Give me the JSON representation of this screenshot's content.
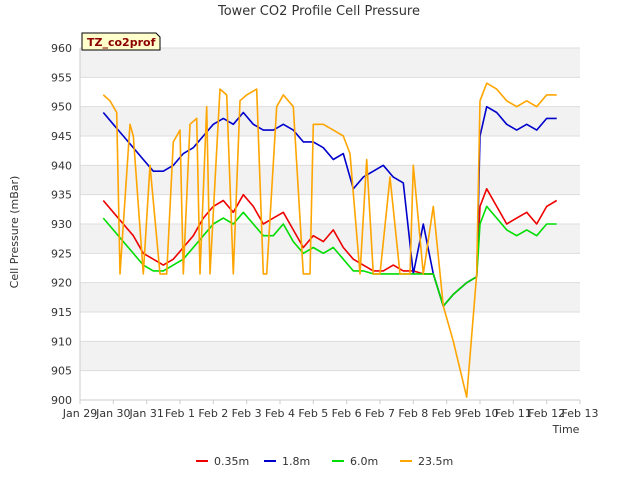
{
  "chart_data": {
    "type": "line",
    "title": "Tower CO2 Profile Cell Pressure",
    "badge": "TZ_co2prof",
    "xlabel": "Time",
    "ylabel": "Cell Pressure (mBar)",
    "ylim": [
      900,
      960
    ],
    "yticks": [
      900,
      905,
      910,
      915,
      920,
      925,
      930,
      935,
      940,
      945,
      950,
      955,
      960
    ],
    "xlim": [
      0,
      15
    ],
    "xticks": [
      {
        "v": 0,
        "label": "Jan 29"
      },
      {
        "v": 1,
        "label": "Jan 30"
      },
      {
        "v": 2,
        "label": "Jan 31"
      },
      {
        "v": 3,
        "label": "Feb 1"
      },
      {
        "v": 4,
        "label": "Feb 2"
      },
      {
        "v": 5,
        "label": "Feb 3"
      },
      {
        "v": 6,
        "label": "Feb 4"
      },
      {
        "v": 7,
        "label": "Feb 5"
      },
      {
        "v": 8,
        "label": "Feb 6"
      },
      {
        "v": 9,
        "label": "Feb 7"
      },
      {
        "v": 10,
        "label": "Feb 8"
      },
      {
        "v": 11,
        "label": "Feb 9"
      },
      {
        "v": 12,
        "label": "Feb 10"
      },
      {
        "v": 13,
        "label": "Feb 11"
      },
      {
        "v": 14,
        "label": "Feb 12"
      },
      {
        "v": 15,
        "label": "Feb 13"
      }
    ],
    "grid": true,
    "legend": "bottom",
    "series": [
      {
        "name": "0.35m",
        "color": "#ee0000",
        "x": [
          0.7,
          1.0,
          1.3,
          1.6,
          1.9,
          2.2,
          2.5,
          2.8,
          3.1,
          3.4,
          3.7,
          4.0,
          4.3,
          4.6,
          4.9,
          5.2,
          5.5,
          5.8,
          6.1,
          6.4,
          6.7,
          7.0,
          7.3,
          7.6,
          7.9,
          8.2,
          8.5,
          8.8,
          9.1,
          9.4,
          9.7,
          10.0,
          10.3,
          10.6,
          10.9,
          11.2,
          11.6,
          11.9,
          12.0,
          12.2,
          12.5,
          12.8,
          13.1,
          13.4,
          13.7,
          14.0,
          14.3
        ],
        "y": [
          934,
          932,
          930,
          928,
          925,
          924,
          923,
          924,
          926,
          928,
          931,
          933,
          934,
          932,
          935,
          933,
          930,
          931,
          932,
          929,
          926,
          928,
          927,
          929,
          926,
          924,
          923,
          922,
          922,
          923,
          922,
          922,
          921.5,
          921.5,
          916,
          918,
          920,
          921,
          933,
          936,
          933,
          930,
          931,
          932,
          930,
          933,
          934
        ]
      },
      {
        "name": "1.8m",
        "color": "#0000cc",
        "x": [
          0.7,
          1.0,
          1.3,
          1.6,
          1.9,
          2.2,
          2.5,
          2.8,
          3.1,
          3.4,
          3.7,
          4.0,
          4.3,
          4.6,
          4.9,
          5.2,
          5.5,
          5.8,
          6.1,
          6.4,
          6.7,
          7.0,
          7.3,
          7.6,
          7.9,
          8.2,
          8.5,
          8.8,
          9.1,
          9.4,
          9.7,
          10.0,
          10.3,
          10.6,
          10.9,
          11.2,
          11.6,
          11.9,
          12.0,
          12.2,
          12.5,
          12.8,
          13.1,
          13.4,
          13.7,
          14.0,
          14.3
        ],
        "y": [
          949,
          947,
          945,
          943,
          941,
          939,
          939,
          940,
          942,
          943,
          945,
          947,
          948,
          947,
          949,
          947,
          946,
          946,
          947,
          946,
          944,
          944,
          943,
          941,
          942,
          936,
          938,
          939,
          940,
          938,
          937,
          921.5,
          930,
          921.5,
          916,
          918,
          920,
          921,
          945,
          950,
          949,
          947,
          946,
          947,
          946,
          948,
          948
        ]
      },
      {
        "name": "6.0m",
        "color": "#00dd00",
        "x": [
          0.7,
          1.0,
          1.3,
          1.6,
          1.9,
          2.2,
          2.5,
          2.8,
          3.1,
          3.4,
          3.7,
          4.0,
          4.3,
          4.6,
          4.9,
          5.2,
          5.5,
          5.8,
          6.1,
          6.4,
          6.7,
          7.0,
          7.3,
          7.6,
          7.9,
          8.2,
          8.5,
          8.8,
          9.1,
          9.4,
          9.7,
          10.0,
          10.3,
          10.6,
          10.9,
          11.2,
          11.6,
          11.9,
          12.0,
          12.2,
          12.5,
          12.8,
          13.1,
          13.4,
          13.7,
          14.0,
          14.3
        ],
        "y": [
          931,
          929,
          927,
          925,
          923,
          922,
          922,
          923,
          924,
          926,
          928,
          930,
          931,
          930,
          932,
          930,
          928,
          928,
          930,
          927,
          925,
          926,
          925,
          926,
          924,
          922,
          922,
          921.5,
          921.5,
          921.5,
          921.5,
          921.5,
          921.5,
          921.5,
          916,
          918,
          920,
          921,
          930,
          933,
          931,
          929,
          928,
          929,
          928,
          930,
          930
        ]
      },
      {
        "name": "23.5m",
        "color": "#ffa500",
        "x": [
          0.7,
          0.9,
          1.1,
          1.2,
          1.5,
          1.6,
          1.9,
          2.1,
          2.4,
          2.6,
          2.8,
          3.0,
          3.1,
          3.3,
          3.5,
          3.6,
          3.8,
          3.9,
          4.2,
          4.4,
          4.6,
          4.8,
          5.0,
          5.3,
          5.5,
          5.6,
          5.9,
          6.1,
          6.4,
          6.7,
          6.9,
          7.0,
          7.3,
          7.6,
          7.9,
          8.1,
          8.4,
          8.6,
          8.8,
          9.0,
          9.3,
          9.6,
          9.9,
          10.0,
          10.3,
          10.6,
          10.9,
          11.2,
          11.6,
          11.9,
          12.0,
          12.2,
          12.5,
          12.8,
          13.1,
          13.4,
          13.7,
          14.0,
          14.3
        ],
        "y": [
          952,
          951,
          949,
          921.5,
          947,
          945,
          921.5,
          940,
          921.5,
          921.5,
          944,
          946,
          921.5,
          947,
          948,
          921.5,
          950,
          921.5,
          953,
          952,
          921.5,
          951,
          952,
          953,
          921.5,
          921.5,
          950,
          952,
          950,
          921.5,
          921.5,
          947,
          947,
          946,
          945,
          942,
          921.5,
          941,
          921.5,
          921.5,
          938,
          921.5,
          921.5,
          940,
          921.5,
          933,
          916,
          910,
          900.5,
          921.5,
          951,
          954,
          953,
          951,
          950,
          951,
          950,
          952,
          952
        ]
      }
    ]
  }
}
